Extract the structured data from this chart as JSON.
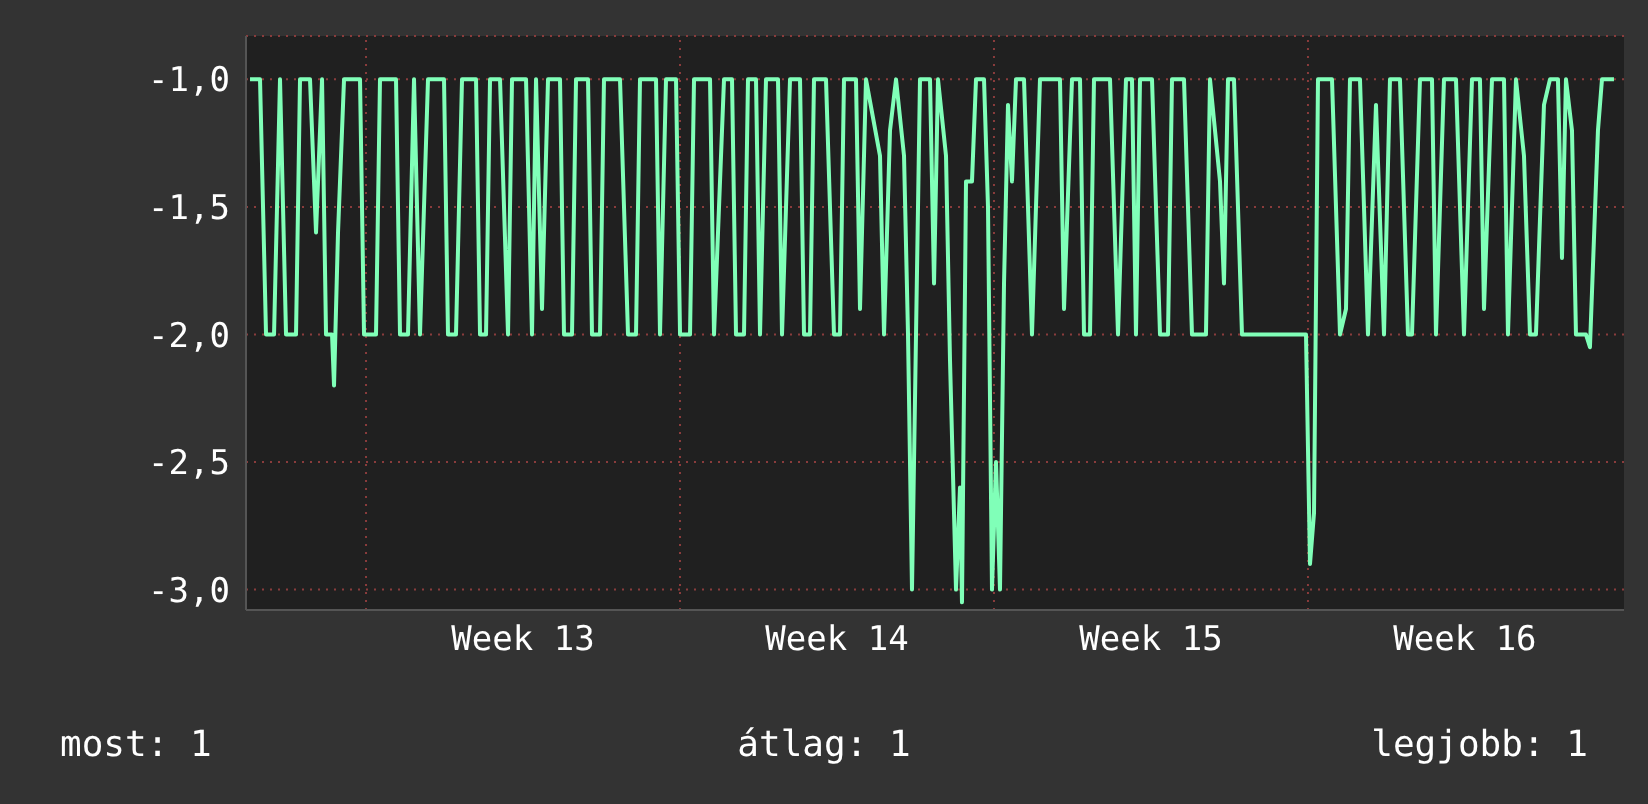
{
  "chart_data": {
    "type": "line",
    "grid": true,
    "xlim": [
      "--03-22T07:47",
      "--04-22T01:06"
    ],
    "ylim": [
      -3.08,
      -0.83
    ],
    "xticks": [
      {
        "value": "--03-25T00:00",
        "label": null
      },
      {
        "value": "--03-28T12:00",
        "label": "Week 13"
      },
      {
        "value": "--04-01T00:00",
        "label": null
      },
      {
        "value": "--04-04T12:00",
        "label": "Week 14"
      },
      {
        "value": "--04-08T00:00",
        "label": null
      },
      {
        "value": "--04-11T12:00",
        "label": "Week 15"
      },
      {
        "value": "--04-15T00:00",
        "label": null
      },
      {
        "value": "--04-18T12:00",
        "label": "Week 16"
      }
    ],
    "yticks": [
      {
        "value": -3,
        "label": "-3,0"
      },
      {
        "value": -2.5,
        "label": "-2,5"
      },
      {
        "value": -2,
        "label": "-2,0"
      },
      {
        "value": -1.5,
        "label": "-1,5"
      },
      {
        "value": -1,
        "label": "-1,0"
      }
    ],
    "annotations": [
      "most: 1",
      "átlag: 1",
      "legjobb: 1"
    ],
    "x": [
      "--03-22T09:56",
      "--03-22T15:17",
      "--03-22T18:30",
      "--03-22T22:47",
      "--03-23T01:59",
      "--03-23T05:12",
      "--03-23T10:33",
      "--03-23T12:41",
      "--03-23T18:02",
      "--03-23T21:15",
      "--03-24T00:28",
      "--03-24T02:36",
      "--03-24T05:49",
      "--03-24T06:53",
      "--03-24T09:01",
      "--03-24T12:14",
      "--03-24T20:47",
      "--03-24T22:56",
      "--03-25T05:21",
      "--03-25T07:29",
      "--03-25T16:03",
      "--03-25T18:11",
      "--03-25T22:28",
      "--03-26T01:41",
      "--03-26T04:53",
      "--03-26T09:10",
      "--03-26T17:44",
      "--03-26T19:52",
      "--03-27T00:09",
      "--03-27T03:22",
      "--03-27T10:52",
      "--03-27T13:00",
      "--03-27T16:13",
      "--03-27T18:21",
      "--03-27T23:42",
      "--03-28T03:59",
      "--03-28T06:07",
      "--03-28T13:37",
      "--03-28T16:49",
      "--03-28T18:58",
      "--03-28T22:10",
      "--03-29T01:23",
      "--03-29T07:48",
      "--03-29T09:56",
      "--03-29T14:13",
      "--03-29T16:22",
      "--03-29T22:47",
      "--03-30T00:55",
      "--03-30T05:12",
      "--03-30T07:20",
      "--03-30T15:54",
      "--03-30T20:11",
      "--03-31T00:28",
      "--03-31T02:36",
      "--03-31T11:10",
      "--03-31T13:18",
      "--03-31T16:31",
      "--03-31T21:52",
      "--04-01T00:01",
      "--04-01T05:22",
      "--04-01T07:30",
      "--04-01T16:04",
      "--04-01T18:12",
      "--04-01T23:33",
      "--04-02T03:50",
      "--04-02T05:58",
      "--04-02T10:15",
      "--04-02T12:23",
      "--04-02T16:40",
      "--04-02T18:49",
      "--04-02T22:01",
      "--04-03T04:26",
      "--04-03T06:35",
      "--04-03T10:52",
      "--04-03T16:13",
      "--04-03T18:21",
      "--04-03T21:34",
      "--04-03T23:42",
      "--04-04T06:07",
      "--04-04T10:24",
      "--04-04T13:37",
      "--04-04T15:45",
      "--04-04T22:10",
      "--04-05T00:19",
      "--04-05T03:31",
      "--04-05T11:01",
      "--04-05T13:10",
      "--04-05T16:22",
      "--04-05T19:35",
      "--04-05T23:52",
      "--04-06T02:00",
      "--04-06T04:08",
      "--04-06T06:17",
      "--04-06T08:25",
      "--04-06T13:46",
      "--04-06T15:55",
      "--04-06T18:03",
      "--04-06T22:20",
      "--04-07T00:28",
      "--04-07T03:41",
      "--04-07T05:49",
      "--04-07T06:53",
      "--04-07T09:02",
      "--04-07T12:14",
      "--04-07T14:23",
      "--04-07T18:40",
      "--04-07T20:48",
      "--04-07T22:56",
      "--04-08T01:05",
      "--04-08T03:13",
      "--04-08T05:22",
      "--04-08T07:30",
      "--04-08T09:38",
      "--04-08T11:47",
      "--04-08T16:04",
      "--04-08T20:20",
      "--04-09T00:37",
      "--04-09T11:19",
      "--04-09T13:28",
      "--04-09T17:45",
      "--04-09T22:02",
      "--04-10T00:10",
      "--04-10T03:23",
      "--04-10T05:31",
      "--04-10T14:05",
      "--04-10T18:22",
      "--04-10T22:38",
      "--04-11T01:51",
      "--04-11T03:59",
      "--04-11T06:08",
      "--04-11T12:33",
      "--04-11T16:50",
      "--04-11T21:07",
      "--04-11T23:15",
      "--04-12T05:40",
      "--04-12T09:57",
      "--04-12T17:26",
      "--04-12T19:35",
      "--04-13T00:56",
      "--04-13T03:04",
      "--04-13T05:13",
      "--04-13T08:25",
      "--04-13T12:42",
      "--04-14T22:57",
      "--04-15T01:05",
      "--04-15T03:14",
      "--04-15T05:22",
      "--04-15T12:52",
      "--04-15T17:08",
      "--04-15T20:21",
      "--04-15T22:29",
      "--04-16T03:50",
      "--04-16T08:07",
      "--04-16T12:24",
      "--04-16T16:41",
      "--04-16T19:53",
      "--04-17T01:14",
      "--04-17T05:31",
      "--04-17T07:40",
      "--04-17T11:56",
      "--04-17T18:22",
      "--04-17T20:30",
      "--04-18T00:47",
      "--04-18T07:12",
      "--04-18T11:29",
      "--04-18T15:46",
      "--04-18T20:02",
      "--04-18T22:11",
      "--04-19T02:28",
      "--04-19T08:53",
      "--04-19T11:01",
      "--04-19T15:18",
      "--04-19T19:35",
      "--04-19T22:47",
      "--04-20T02:00",
      "--04-20T06:17",
      "--04-20T09:29",
      "--04-20T13:46",
      "--04-20T15:55",
      "--04-20T18:03",
      "--04-20T21:16",
      "--04-20T23:24",
      "--04-21T04:45",
      "--04-21T06:53",
      "--04-21T11:10",
      "--04-21T13:19",
      "--04-21T19:44"
    ],
    "series": [
      {
        "color": "#80ffb8",
        "values": [
          -1,
          -1,
          -2,
          -2,
          -1,
          -2,
          -2,
          -1,
          -1,
          -1.6,
          -1,
          -2,
          -2,
          -2.2,
          -1.6,
          -1,
          -1,
          -2,
          -2,
          -1,
          -1,
          -2,
          -2,
          -1,
          -2,
          -1,
          -1,
          -2,
          -2,
          -1,
          -1,
          -2,
          -2,
          -1,
          -1,
          -2,
          -1,
          -1,
          -2,
          -1,
          -1.9,
          -1,
          -1,
          -2,
          -2,
          -1,
          -1,
          -2,
          -2,
          -1,
          -1,
          -2,
          -2,
          -1,
          -1,
          -2,
          -1,
          -1,
          -2,
          -2,
          -1,
          -1,
          -2,
          -1,
          -1,
          -2,
          -2,
          -1,
          -1,
          -2,
          -1,
          -1,
          -2,
          -1,
          -1,
          -2,
          -2,
          -1,
          -1,
          -2,
          -2,
          -1,
          -1,
          -1.9,
          -1,
          -1.3,
          -2,
          -1.2,
          -1,
          -1.3,
          -2,
          -3,
          -2,
          -1,
          -1,
          -1.8,
          -1,
          -1.3,
          -2.1,
          -3,
          -2.6,
          -3.05,
          -1.4,
          -1.4,
          -1,
          -1,
          -1.5,
          -3,
          -2.5,
          -3,
          -1.8,
          -1.1,
          -1.4,
          -1,
          -1,
          -2,
          -1,
          -1,
          -1.9,
          -1,
          -1,
          -2,
          -2,
          -1,
          -1,
          -2,
          -1,
          -1,
          -2,
          -1,
          -1,
          -2,
          -2,
          -1,
          -1,
          -2,
          -2,
          -1,
          -1.4,
          -1.8,
          -1,
          -1,
          -2,
          -2,
          -2.9,
          -2.7,
          -1,
          -1,
          -2,
          -1.9,
          -1,
          -1,
          -2,
          -1.1,
          -2,
          -1,
          -1,
          -2,
          -2,
          -1,
          -1,
          -2,
          -1,
          -1,
          -2,
          -1,
          -1,
          -1.9,
          -1,
          -1,
          -2,
          -1,
          -1.3,
          -2,
          -2,
          -1.1,
          -1,
          -1,
          -1.7,
          -1,
          -1.2,
          -2,
          -2,
          -2.05,
          -1.2,
          -1,
          -1
        ]
      }
    ]
  }
}
